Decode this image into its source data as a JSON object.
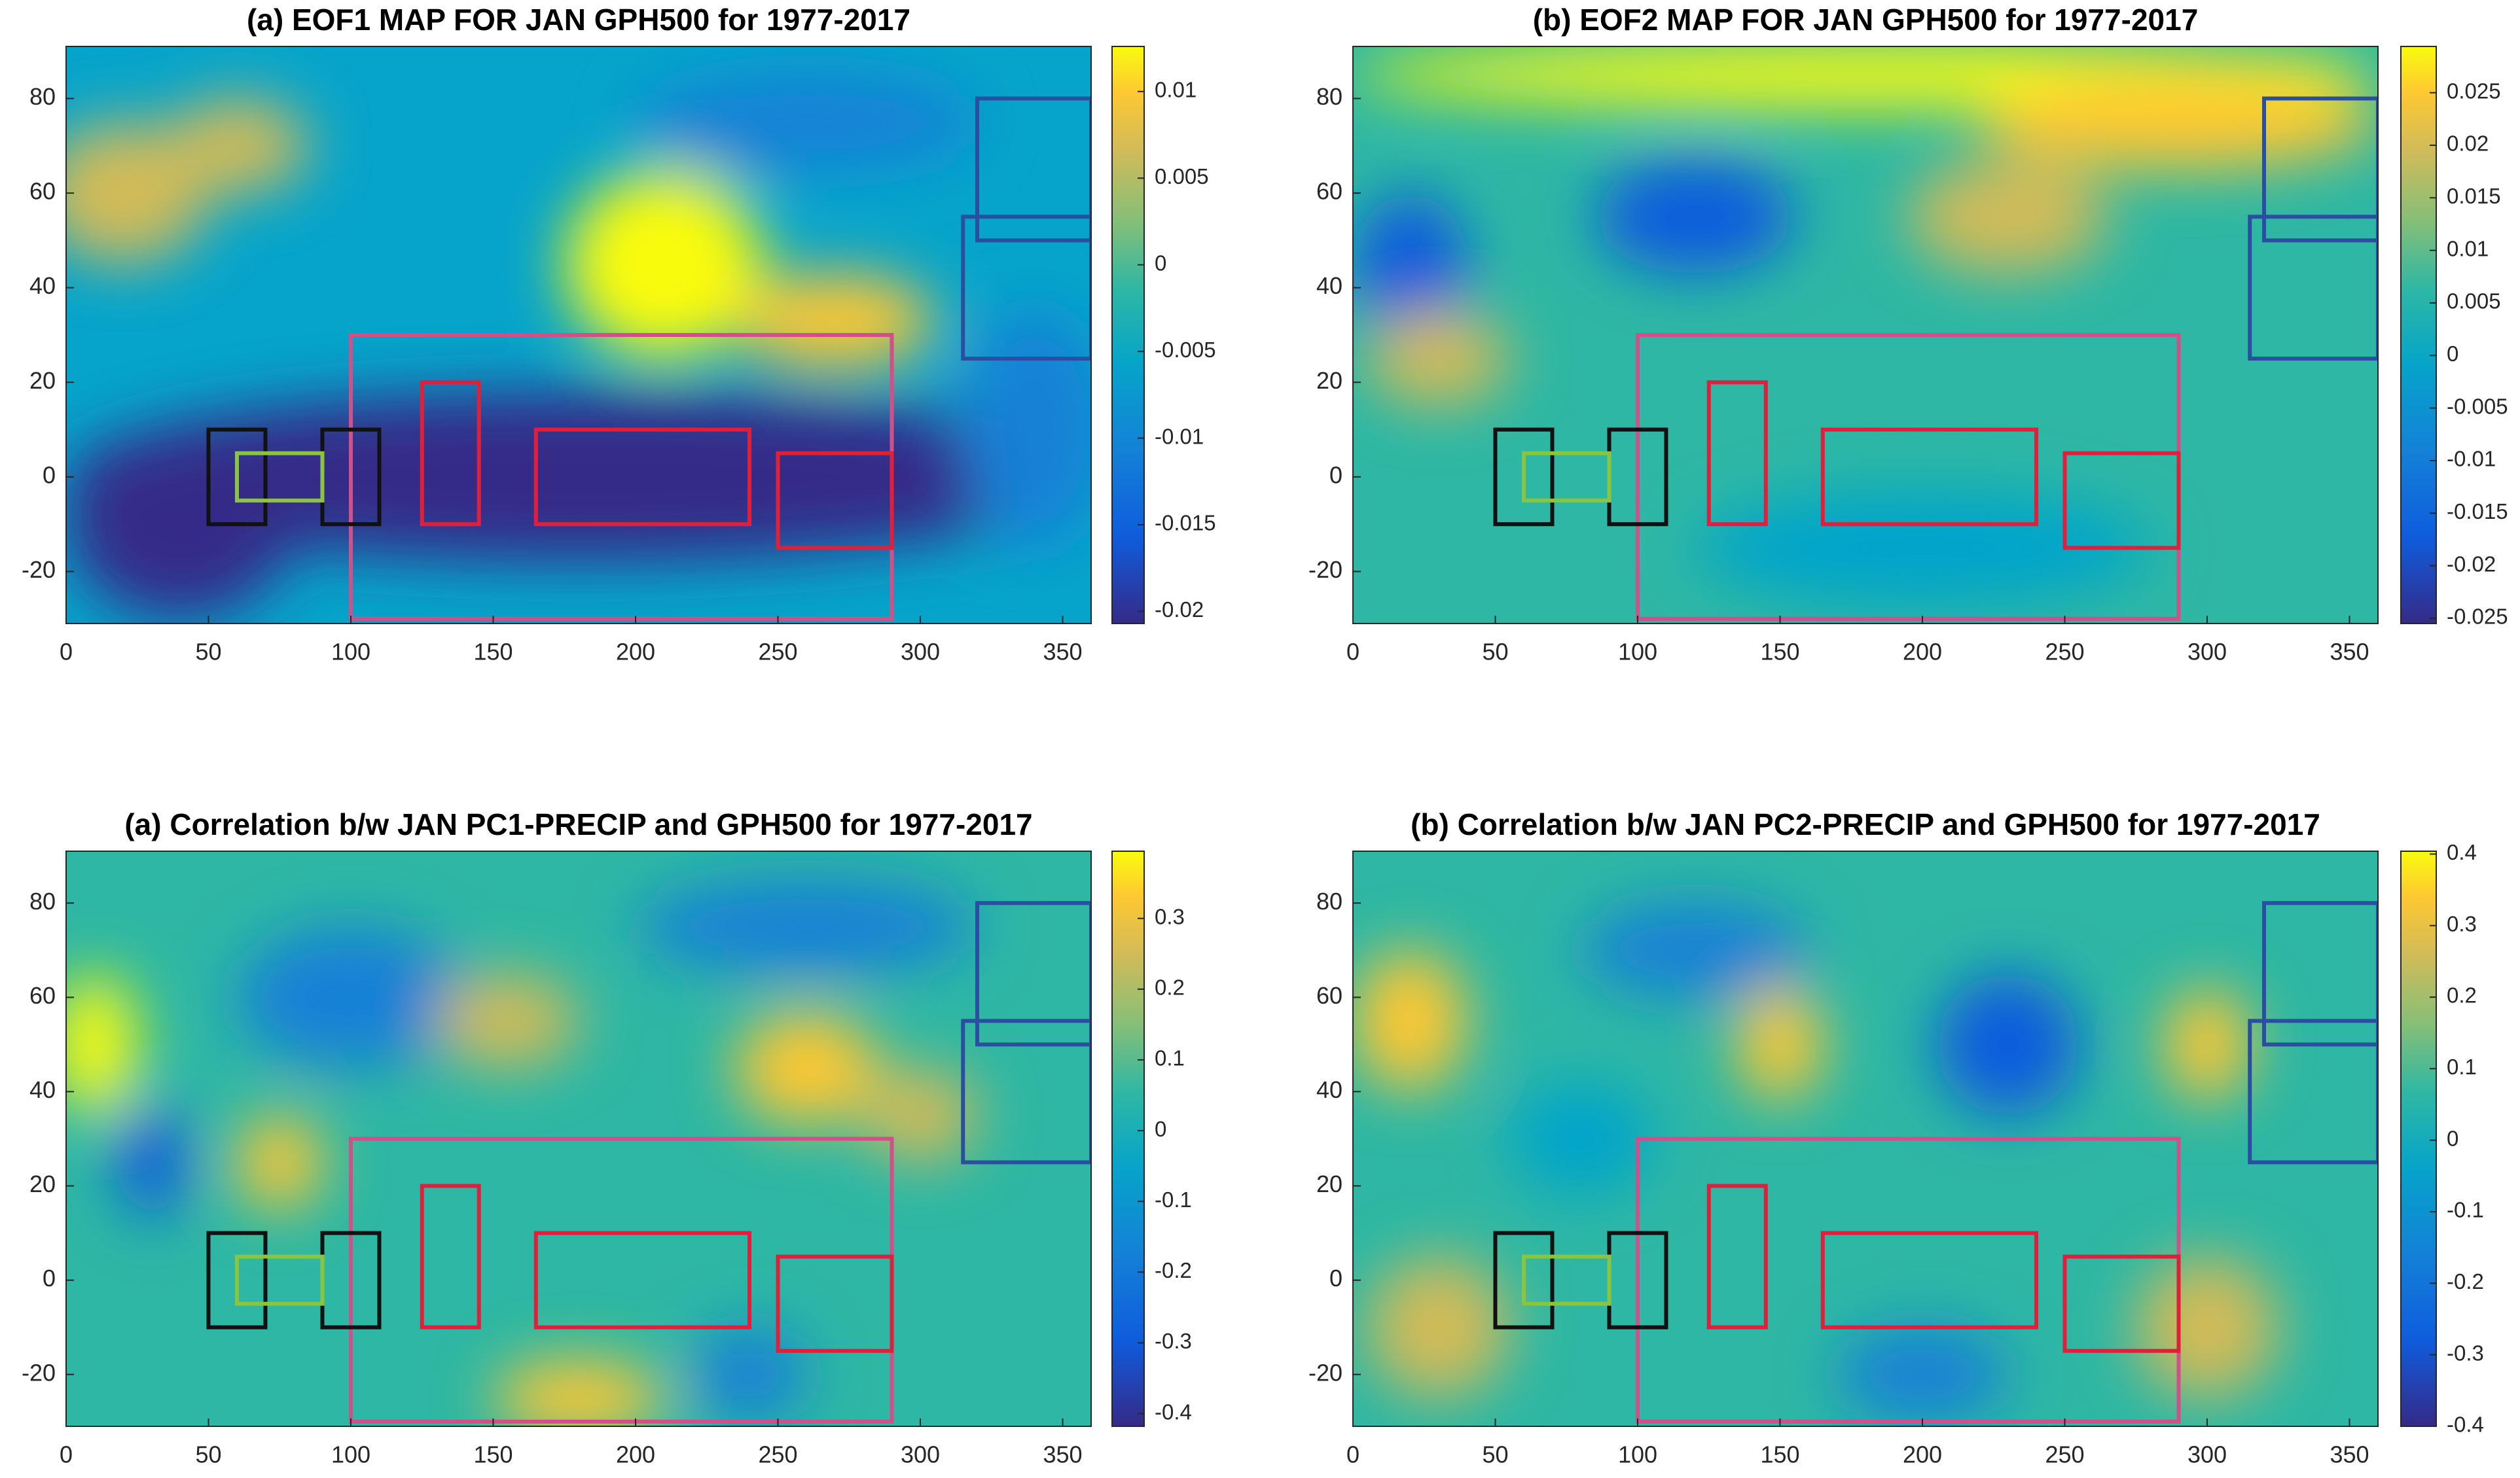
{
  "chart_data": [
    {
      "type": "map",
      "title": "(a) EOF1 MAP FOR JAN GPH500 for 1977-2017",
      "xlim": [
        0,
        360
      ],
      "ylim": [
        -31,
        91
      ],
      "xticks": [
        0,
        50,
        100,
        150,
        200,
        250,
        300,
        350
      ],
      "yticks": [
        -20,
        0,
        20,
        40,
        60,
        80
      ],
      "clim": [
        -0.0207,
        0.0126
      ],
      "cticks": [
        -0.02,
        -0.015,
        -0.01,
        -0.005,
        0,
        0.005,
        0.01
      ],
      "colormap": "parula"
    },
    {
      "type": "map",
      "title": "(b) EOF2 MAP FOR JAN GPH500 for 1977-2017",
      "xlim": [
        0,
        360
      ],
      "ylim": [
        -31,
        91
      ],
      "xticks": [
        0,
        50,
        100,
        150,
        200,
        250,
        300,
        350
      ],
      "yticks": [
        -20,
        0,
        20,
        40,
        60,
        80
      ],
      "clim": [
        -0.0255,
        0.0294
      ],
      "cticks": [
        -0.025,
        -0.02,
        -0.015,
        -0.01,
        -0.005,
        0,
        0.005,
        0.01,
        0.015,
        0.02,
        0.025
      ],
      "colormap": "parula"
    },
    {
      "type": "map",
      "title": "(a) Correlation b/w JAN PC1-PRECIP and GPH500 for 1977-2017",
      "xlim": [
        0,
        360
      ],
      "ylim": [
        -31,
        91
      ],
      "xticks": [
        0,
        50,
        100,
        150,
        200,
        250,
        300,
        350
      ],
      "yticks": [
        -20,
        0,
        20,
        40,
        60,
        80
      ],
      "clim": [
        -0.418,
        0.395
      ],
      "cticks": [
        -0.4,
        -0.3,
        -0.2,
        -0.1,
        0,
        0.1,
        0.2,
        0.3
      ],
      "colormap": "parula"
    },
    {
      "type": "map",
      "title": "(b) Correlation b/w JAN PC2-PRECIP and GPH500 for 1977-2017",
      "xlim": [
        0,
        360
      ],
      "ylim": [
        -31,
        91
      ],
      "xticks": [
        0,
        50,
        100,
        150,
        200,
        250,
        300,
        350
      ],
      "yticks": [
        -20,
        0,
        20,
        40,
        60,
        80
      ],
      "clim": [
        -0.4,
        0.404
      ],
      "cticks": [
        -0.4,
        -0.3,
        -0.2,
        -0.1,
        0,
        0.1,
        0.2,
        0.3,
        0.4
      ],
      "colormap": "parula"
    }
  ]
}
